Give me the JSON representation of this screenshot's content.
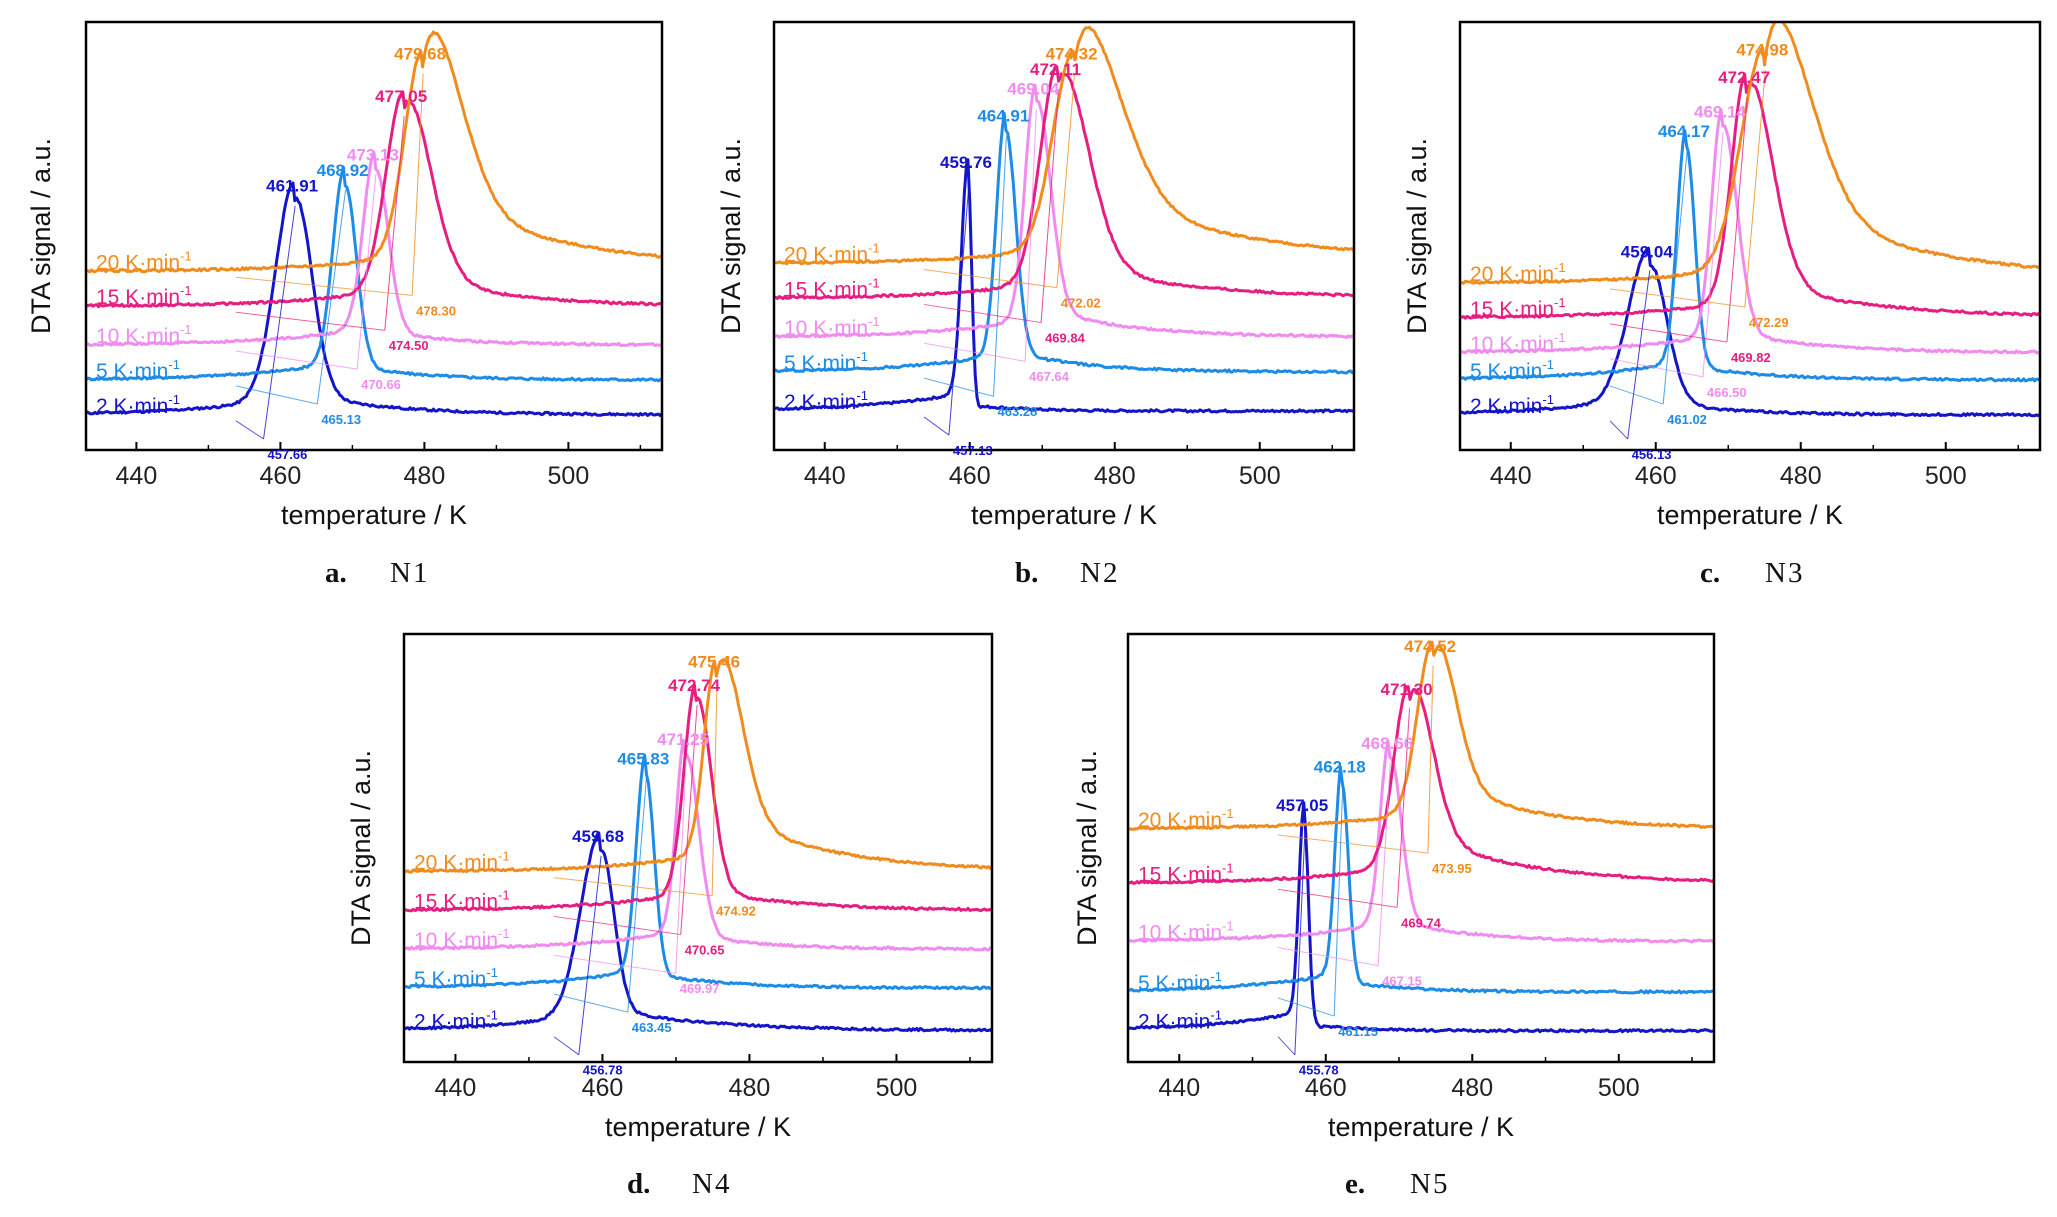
{
  "colors": {
    "2": "#1414c8",
    "5": "#1e8ce6",
    "10": "#f08cf0",
    "15": "#e61e82",
    "20": "#f08c1e",
    "frame": "#000000",
    "leader": "#6a6ad0"
  },
  "chart_data": [
    {
      "type": "line",
      "panel_letter": "a.",
      "panel_name": "N1",
      "xlabel": "temperature / K",
      "ylabel": "DTA signal / a.u.",
      "xlim": [
        433,
        513
      ],
      "xticks": [
        440,
        460,
        480,
        500
      ],
      "series": [
        {
          "name": "2 K·min⁻¹",
          "rate": "2",
          "label": "2 K·min",
          "sup": "-1",
          "peak": 461.91,
          "peak_label": "461.91",
          "onset": 457.66,
          "onset_label": "457.66",
          "baseline": 0.07,
          "height": 0.55,
          "wl": 2.6,
          "wr": 2.4,
          "tail": 0.06,
          "tw": 12
        },
        {
          "name": "5 K·min⁻¹",
          "rate": "5",
          "label": "5 K·min",
          "sup": "-1",
          "peak": 468.92,
          "peak_label": "468.92",
          "onset": 465.13,
          "onset_label": "465.13",
          "baseline": 0.16,
          "height": 0.5,
          "wl": 1.6,
          "wr": 1.6,
          "tail": 0.04,
          "tw": 10
        },
        {
          "name": "10 K·min⁻¹",
          "rate": "10",
          "label": "10 K·min",
          "sup": "-1",
          "peak": 473.13,
          "peak_label": "473.13",
          "onset": 470.66,
          "onset_label": "470.66",
          "baseline": 0.25,
          "height": 0.45,
          "wl": 1.6,
          "wr": 1.8,
          "tail": 0.04,
          "tw": 10
        },
        {
          "name": "15 K·min⁻¹",
          "rate": "15",
          "label": "15 K·min",
          "sup": "-1",
          "peak": 477.05,
          "peak_label": "477.05",
          "onset": 474.5,
          "onset_label": "474.50",
          "baseline": 0.35,
          "height": 0.5,
          "wl": 2.4,
          "wr": 3.6,
          "tail": 0.1,
          "tw": 12
        },
        {
          "name": "20 K·min⁻¹",
          "rate": "20",
          "label": "20 K·min",
          "sup": "-1",
          "peak": 479.68,
          "peak_label": "479.68",
          "onset": 478.3,
          "onset_label": "478.30",
          "baseline": 0.44,
          "height": 0.52,
          "wl": 2.4,
          "wr": 5,
          "tail": 0.2,
          "tw": 20
        }
      ]
    },
    {
      "type": "line",
      "panel_letter": "b.",
      "panel_name": "N2",
      "xlabel": "temperature / K",
      "ylabel": "DTA signal / a.u.",
      "xlim": [
        433,
        513
      ],
      "xticks": [
        440,
        460,
        480,
        500
      ],
      "series": [
        {
          "name": "2 K·min⁻¹",
          "rate": "2",
          "label": "2 K·min",
          "sup": "-1",
          "peak": 459.76,
          "peak_label": "459.76",
          "onset": 457.13,
          "onset_label": "457.13",
          "baseline": 0.08,
          "height": 0.6,
          "wl": 0.9,
          "wr": 0.5,
          "tail": 0.02,
          "tw": 6
        },
        {
          "name": "5 K·min⁻¹",
          "rate": "5",
          "label": "5 K·min",
          "sup": "-1",
          "peak": 464.91,
          "peak_label": "464.91",
          "onset": 463.28,
          "onset_label": "463.28",
          "baseline": 0.18,
          "height": 0.62,
          "wl": 1.2,
          "wr": 1.4,
          "tail": 0.06,
          "tw": 10
        },
        {
          "name": "10 K·min⁻¹",
          "rate": "10",
          "label": "10 K·min",
          "sup": "-1",
          "peak": 469.04,
          "peak_label": "469.04",
          "onset": 467.64,
          "onset_label": "467.64",
          "baseline": 0.27,
          "height": 0.6,
          "wl": 1.4,
          "wr": 2,
          "tail": 0.08,
          "tw": 12
        },
        {
          "name": "15 K·min⁻¹",
          "rate": "15",
          "label": "15 K·min",
          "sup": "-1",
          "peak": 472.11,
          "peak_label": "472.11",
          "onset": 469.84,
          "onset_label": "469.84",
          "baseline": 0.37,
          "height": 0.55,
          "wl": 2.4,
          "wr": 4,
          "tail": 0.1,
          "tw": 16
        },
        {
          "name": "20 K·min⁻¹",
          "rate": "20",
          "label": "20 K·min",
          "sup": "-1",
          "peak": 474.32,
          "peak_label": "474.32",
          "onset": 472.02,
          "onset_label": "472.02",
          "baseline": 0.46,
          "height": 0.5,
          "wl": 2.8,
          "wr": 6,
          "tail": 0.2,
          "tw": 22
        }
      ]
    },
    {
      "type": "line",
      "panel_letter": "c.",
      "panel_name": "N3",
      "xlabel": "temperature / K",
      "ylabel": "DTA signal / a.u.",
      "xlim": [
        433,
        513
      ],
      "xticks": [
        440,
        460,
        480,
        500
      ],
      "series": [
        {
          "name": "2 K·min⁻¹",
          "rate": "2",
          "label": "2 K·min",
          "sup": "-1",
          "peak": 459.04,
          "peak_label": "459.04",
          "onset": 456.13,
          "onset_label": "456.13",
          "baseline": 0.07,
          "height": 0.38,
          "wl": 2.8,
          "wr": 2.4,
          "tail": 0.04,
          "tw": 10
        },
        {
          "name": "5 K·min⁻¹",
          "rate": "5",
          "label": "5 K·min",
          "sup": "-1",
          "peak": 464.17,
          "peak_label": "464.17",
          "onset": 461.02,
          "onset_label": "461.02",
          "baseline": 0.16,
          "height": 0.6,
          "wl": 1.2,
          "wr": 1.2,
          "tail": 0.04,
          "tw": 10
        },
        {
          "name": "10 K·min⁻¹",
          "rate": "10",
          "label": "10 K·min",
          "sup": "-1",
          "peak": 469.14,
          "peak_label": "469.14",
          "onset": 466.5,
          "onset_label": "466.50",
          "baseline": 0.23,
          "height": 0.58,
          "wl": 1.4,
          "wr": 2,
          "tail": 0.06,
          "tw": 12
        },
        {
          "name": "15 K·min⁻¹",
          "rate": "15",
          "label": "15 K·min",
          "sup": "-1",
          "peak": 472.47,
          "peak_label": "472.47",
          "onset": 469.82,
          "onset_label": "469.82",
          "baseline": 0.32,
          "height": 0.58,
          "wl": 2,
          "wr": 3.4,
          "tail": 0.1,
          "tw": 16
        },
        {
          "name": "20 K·min⁻¹",
          "rate": "20",
          "label": "20 K·min",
          "sup": "-1",
          "peak": 474.98,
          "peak_label": "474.98",
          "onset": 472.29,
          "onset_label": "472.29",
          "baseline": 0.41,
          "height": 0.56,
          "wl": 3.2,
          "wr": 6,
          "tail": 0.22,
          "tw": 22
        }
      ]
    },
    {
      "type": "line",
      "panel_letter": "d.",
      "panel_name": "N4",
      "xlabel": "temperature / K",
      "ylabel": "DTA signal / a.u.",
      "xlim": [
        433,
        513
      ],
      "xticks": [
        440,
        460,
        480,
        500
      ],
      "series": [
        {
          "name": "2 K·min⁻¹",
          "rate": "2",
          "label": "2 K·min",
          "sup": "-1",
          "peak": 459.68,
          "peak_label": "459.68",
          "onset": 456.78,
          "onset_label": "456.78",
          "baseline": 0.06,
          "height": 0.46,
          "wl": 2.6,
          "wr": 1.8,
          "tail": 0.06,
          "tw": 14
        },
        {
          "name": "5 K·min⁻¹",
          "rate": "5",
          "label": "5 K·min",
          "sup": "-1",
          "peak": 465.83,
          "peak_label": "465.83",
          "onset": 463.45,
          "onset_label": "463.45",
          "baseline": 0.17,
          "height": 0.55,
          "wl": 1.2,
          "wr": 1.2,
          "tail": 0.04,
          "tw": 10
        },
        {
          "name": "10 K·min⁻¹",
          "rate": "10",
          "label": "10 K·min",
          "sup": "-1",
          "peak": 471.25,
          "peak_label": "471.25",
          "onset": 469.97,
          "onset_label": "469.97",
          "baseline": 0.27,
          "height": 0.5,
          "wl": 1.2,
          "wr": 1.8,
          "tail": 0.04,
          "tw": 10
        },
        {
          "name": "15 K·min⁻¹",
          "rate": "15",
          "label": "15 K·min",
          "sup": "-1",
          "peak": 472.74,
          "peak_label": "472.74",
          "onset": 470.65,
          "onset_label": "470.65",
          "baseline": 0.37,
          "height": 0.54,
          "wl": 1.6,
          "wr": 2,
          "tail": 0.06,
          "tw": 12
        },
        {
          "name": "20 K·min⁻¹",
          "rate": "20",
          "label": "20 K·min",
          "sup": "-1",
          "peak": 475.46,
          "peak_label": "475.46",
          "onset": 474.92,
          "onset_label": "474.92",
          "baseline": 0.47,
          "height": 0.5,
          "wl": 1.6,
          "wr": 3.2,
          "tail": 0.16,
          "tw": 14
        }
      ]
    },
    {
      "type": "line",
      "panel_letter": "e.",
      "panel_name": "N5",
      "xlabel": "temperature / K",
      "ylabel": "DTA signal / a.u.",
      "xlim": [
        433,
        513
      ],
      "xticks": [
        440,
        460,
        480,
        500
      ],
      "series": [
        {
          "name": "2 K·min⁻¹",
          "rate": "2",
          "label": "2 K·min",
          "sup": "-1",
          "peak": 457.05,
          "peak_label": "457.05",
          "onset": 455.78,
          "onset_label": "455.78",
          "baseline": 0.06,
          "height": 0.54,
          "wl": 0.7,
          "wr": 0.6,
          "tail": 0.02,
          "tw": 6
        },
        {
          "name": "5 K·min⁻¹",
          "rate": "5",
          "label": "5 K·min",
          "sup": "-1",
          "peak": 462.18,
          "peak_label": "462.18",
          "onset": 461.15,
          "onset_label": "461.15",
          "baseline": 0.16,
          "height": 0.54,
          "wl": 0.9,
          "wr": 0.9,
          "tail": 0.03,
          "tw": 8
        },
        {
          "name": "10 K·min⁻¹",
          "rate": "10",
          "label": "10 K·min",
          "sup": "-1",
          "peak": 468.66,
          "peak_label": "468.66",
          "onset": 467.15,
          "onset_label": "467.15",
          "baseline": 0.29,
          "height": 0.47,
          "wl": 1.2,
          "wr": 1.6,
          "tail": 0.06,
          "tw": 10
        },
        {
          "name": "15 K·min⁻¹",
          "rate": "15",
          "label": "15 K·min",
          "sup": "-1",
          "peak": 471.3,
          "peak_label": "471.30",
          "onset": 469.74,
          "onset_label": "469.74",
          "baseline": 0.44,
          "height": 0.46,
          "wl": 2,
          "wr": 3,
          "tail": 0.14,
          "tw": 14
        },
        {
          "name": "20 K·min⁻¹",
          "rate": "20",
          "label": "20 K·min",
          "sup": "-1",
          "peak": 474.52,
          "peak_label": "474.52",
          "onset": 473.95,
          "onset_label": "473.95",
          "baseline": 0.58,
          "height": 0.43,
          "wl": 2,
          "wr": 3,
          "tail": 0.14,
          "tw": 12
        }
      ]
    }
  ]
}
